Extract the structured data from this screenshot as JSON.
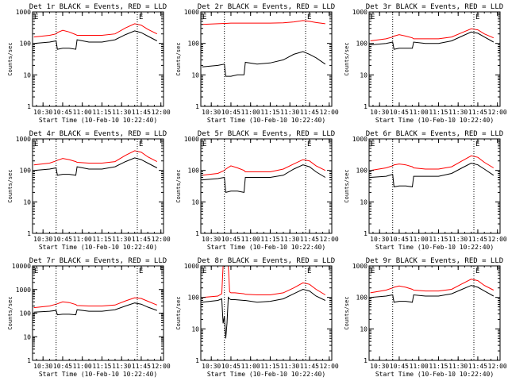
{
  "colors": {
    "events": "#000000",
    "lld": "#ff0000",
    "axis": "#000000",
    "background": "#ffffff"
  },
  "xtick_labels": [
    "10:30",
    "10:45",
    "11:00",
    "11:15",
    "11:30",
    "11:45",
    "12:00"
  ],
  "xlabel": "Start Time (10-Feb-10 10:22:40)",
  "ylabel": "Counts/sec",
  "marker": "E",
  "chart_data": [
    {
      "type": "line",
      "title": "Det 1r BLACK = Events, RED = LLD",
      "xlim": [
        "10:22",
        "12:02"
      ],
      "ylog": true,
      "ylim": [
        1,
        1000
      ],
      "ytick_labels": [
        "1",
        "10",
        "100",
        "1000"
      ],
      "yticks": [
        1,
        10,
        100,
        1000
      ],
      "vlines": [
        "10:40",
        "11:42"
      ],
      "x": [
        "10:23",
        "10:35",
        "10:40",
        "10:41",
        "10:45",
        "10:50",
        "10:55",
        "10:56",
        "11:05",
        "11:15",
        "11:25",
        "11:33",
        "11:40",
        "11:45",
        "11:50",
        "11:57"
      ],
      "series": [
        {
          "name": "LLD",
          "values": [
            160,
            180,
            200,
            220,
            260,
            230,
            190,
            180,
            180,
            180,
            200,
            310,
            420,
            380,
            280,
            200
          ]
        },
        {
          "name": "Events",
          "values": [
            100,
            110,
            120,
            65,
            70,
            70,
            65,
            130,
            110,
            110,
            130,
            190,
            250,
            220,
            170,
            120
          ]
        }
      ]
    },
    {
      "type": "line",
      "title": "Det 2r BLACK = Events, RED = LLD",
      "xlim": [
        "10:22",
        "12:02"
      ],
      "ylog": true,
      "ylim": [
        1,
        1000
      ],
      "ytick_labels": [
        "1",
        "10",
        "100",
        "1000"
      ],
      "yticks": [
        1,
        10,
        100,
        1000
      ],
      "vlines": [
        "10:40",
        "11:42"
      ],
      "x": [
        "10:23",
        "10:35",
        "10:40",
        "10:41",
        "10:45",
        "10:50",
        "10:55",
        "10:56",
        "11:05",
        "11:15",
        "11:25",
        "11:33",
        "11:40",
        "11:45",
        "11:50",
        "11:57"
      ],
      "series": [
        {
          "name": "LLD",
          "values": [
            400,
            420,
            430,
            430,
            440,
            440,
            440,
            440,
            440,
            440,
            450,
            480,
            530,
            500,
            460,
            420
          ]
        },
        {
          "name": "Events",
          "values": [
            18,
            20,
            22,
            9,
            9,
            10,
            10,
            25,
            22,
            24,
            30,
            45,
            55,
            45,
            35,
            22
          ]
        }
      ]
    },
    {
      "type": "line",
      "title": "Det 3r BLACK = Events, RED = LLD",
      "xlim": [
        "10:22",
        "12:02"
      ],
      "ylog": true,
      "ylim": [
        1,
        1000
      ],
      "ytick_labels": [
        "1",
        "10",
        "100",
        "1000"
      ],
      "yticks": [
        1,
        10,
        100,
        1000
      ],
      "vlines": [
        "10:40",
        "11:42"
      ],
      "x": [
        "10:23",
        "10:35",
        "10:40",
        "10:41",
        "10:45",
        "10:50",
        "10:55",
        "10:56",
        "11:05",
        "11:15",
        "11:25",
        "11:33",
        "11:40",
        "11:45",
        "11:50",
        "11:57"
      ],
      "series": [
        {
          "name": "LLD",
          "values": [
            120,
            140,
            160,
            170,
            190,
            170,
            150,
            140,
            140,
            140,
            160,
            220,
            290,
            270,
            200,
            150
          ]
        },
        {
          "name": "Events",
          "values": [
            90,
            100,
            110,
            65,
            70,
            70,
            70,
            110,
            100,
            100,
            120,
            170,
            230,
            210,
            160,
            110
          ]
        }
      ]
    },
    {
      "type": "line",
      "title": "Det 4r BLACK = Events, RED = LLD",
      "xlim": [
        "10:22",
        "12:02"
      ],
      "ylog": true,
      "ylim": [
        1,
        1000
      ],
      "ytick_labels": [
        "1",
        "10",
        "100",
        "1000"
      ],
      "yticks": [
        1,
        10,
        100,
        1000
      ],
      "vlines": [
        "10:40",
        "11:42"
      ],
      "x": [
        "10:23",
        "10:35",
        "10:40",
        "10:41",
        "10:45",
        "10:50",
        "10:55",
        "10:56",
        "11:05",
        "11:15",
        "11:25",
        "11:33",
        "11:40",
        "11:45",
        "11:50",
        "11:57"
      ],
      "series": [
        {
          "name": "LLD",
          "values": [
            150,
            170,
            200,
            210,
            240,
            220,
            190,
            180,
            170,
            170,
            190,
            300,
            420,
            380,
            270,
            190
          ]
        },
        {
          "name": "Events",
          "values": [
            100,
            110,
            120,
            70,
            75,
            75,
            70,
            130,
            110,
            110,
            130,
            190,
            250,
            220,
            170,
            120
          ]
        }
      ]
    },
    {
      "type": "line",
      "title": "Det 5r BLACK = Events, RED = LLD",
      "xlim": [
        "10:22",
        "12:02"
      ],
      "ylog": true,
      "ylim": [
        1,
        1000
      ],
      "ytick_labels": [
        "1",
        "10",
        "100",
        "1000"
      ],
      "yticks": [
        1,
        10,
        100,
        1000
      ],
      "vlines": [
        "10:40",
        "11:42"
      ],
      "x": [
        "10:23",
        "10:35",
        "10:40",
        "10:41",
        "10:45",
        "10:50",
        "10:55",
        "10:56",
        "11:05",
        "11:15",
        "11:25",
        "11:33",
        "11:40",
        "11:45",
        "11:50",
        "11:57"
      ],
      "series": [
        {
          "name": "LLD",
          "values": [
            70,
            80,
            100,
            110,
            140,
            120,
            100,
            90,
            90,
            90,
            110,
            160,
            220,
            200,
            140,
            100
          ]
        },
        {
          "name": "Events",
          "values": [
            50,
            55,
            60,
            20,
            22,
            22,
            20,
            60,
            60,
            60,
            70,
            110,
            150,
            130,
            90,
            60
          ]
        }
      ]
    },
    {
      "type": "line",
      "title": "Det 6r BLACK = Events, RED = LLD",
      "xlim": [
        "10:22",
        "12:02"
      ],
      "ylog": true,
      "ylim": [
        1,
        1000
      ],
      "ytick_labels": [
        "1",
        "10",
        "100",
        "1000"
      ],
      "yticks": [
        1,
        10,
        100,
        1000
      ],
      "vlines": [
        "10:40",
        "11:42"
      ],
      "x": [
        "10:23",
        "10:35",
        "10:40",
        "10:41",
        "10:45",
        "10:50",
        "10:55",
        "10:56",
        "11:05",
        "11:15",
        "11:25",
        "11:33",
        "11:40",
        "11:45",
        "11:50",
        "11:57"
      ],
      "series": [
        {
          "name": "LLD",
          "values": [
            100,
            120,
            140,
            150,
            160,
            150,
            130,
            120,
            110,
            110,
            130,
            200,
            290,
            260,
            180,
            120
          ]
        },
        {
          "name": "Events",
          "values": [
            60,
            65,
            75,
            30,
            32,
            32,
            30,
            65,
            65,
            65,
            80,
            120,
            170,
            150,
            110,
            70
          ]
        }
      ]
    },
    {
      "type": "line",
      "title": "Det 7r BLACK = Events, RED = LLD",
      "xlim": [
        "10:22",
        "12:02"
      ],
      "ylog": true,
      "ylim": [
        1,
        10000
      ],
      "ytick_labels": [
        "1",
        "10",
        "100",
        "1000",
        "10000"
      ],
      "yticks": [
        1,
        10,
        100,
        1000,
        10000
      ],
      "vlines": [
        "10:40",
        "11:42"
      ],
      "x": [
        "10:23",
        "10:35",
        "10:40",
        "10:41",
        "10:45",
        "10:50",
        "10:55",
        "10:56",
        "11:05",
        "11:15",
        "11:25",
        "11:33",
        "11:40",
        "11:45",
        "11:50",
        "11:57"
      ],
      "series": [
        {
          "name": "LLD",
          "values": [
            170,
            200,
            240,
            250,
            300,
            280,
            230,
            210,
            200,
            200,
            220,
            330,
            450,
            420,
            320,
            220
          ]
        },
        {
          "name": "Events",
          "values": [
            110,
            120,
            130,
            85,
            90,
            90,
            85,
            140,
            120,
            120,
            140,
            200,
            270,
            240,
            180,
            130
          ]
        }
      ]
    },
    {
      "type": "line",
      "title": "Det 8r BLACK = Events, RED = LLD",
      "xlim": [
        "10:22",
        "12:02"
      ],
      "ylog": true,
      "ylim": [
        1,
        1000
      ],
      "ytick_labels": [
        "1",
        "10",
        "100",
        "1000"
      ],
      "yticks": [
        1,
        10,
        100,
        1000
      ],
      "vlines": [
        "10:40",
        "11:42"
      ],
      "x": [
        "10:23",
        "10:35",
        "10:38",
        "10:39",
        "10:40",
        "10:41",
        "10:42",
        "10:43",
        "10:44",
        "10:45",
        "10:48",
        "10:55",
        "10:56",
        "11:05",
        "11:15",
        "11:25",
        "11:33",
        "11:40",
        "11:45",
        "11:50",
        "11:57"
      ],
      "series": [
        {
          "name": "LLD",
          "values": [
            100,
            110,
            130,
            1000,
            1000,
            1000,
            1000,
            1000,
            150,
            140,
            140,
            130,
            125,
            120,
            120,
            140,
            200,
            290,
            260,
            180,
            120
          ]
        },
        {
          "name": "Events",
          "values": [
            70,
            80,
            90,
            15,
            25,
            5,
            15,
            100,
            90,
            85,
            85,
            80,
            80,
            70,
            75,
            90,
            130,
            180,
            160,
            110,
            80
          ]
        }
      ]
    },
    {
      "type": "line",
      "title": "Det 9r BLACK = Events, RED = LLD",
      "xlim": [
        "10:22",
        "12:02"
      ],
      "ylog": true,
      "ylim": [
        1,
        1000
      ],
      "ytick_labels": [
        "1",
        "10",
        "100",
        "1000"
      ],
      "yticks": [
        1,
        10,
        100,
        1000
      ],
      "vlines": [
        "10:40",
        "11:42"
      ],
      "x": [
        "10:23",
        "10:35",
        "10:40",
        "10:41",
        "10:45",
        "10:50",
        "10:55",
        "10:56",
        "11:05",
        "11:15",
        "11:25",
        "11:33",
        "11:40",
        "11:45",
        "11:50",
        "11:57"
      ],
      "series": [
        {
          "name": "LLD",
          "values": [
            140,
            170,
            200,
            210,
            230,
            210,
            180,
            170,
            160,
            160,
            180,
            270,
            380,
            340,
            240,
            170
          ]
        },
        {
          "name": "Events",
          "values": [
            100,
            110,
            120,
            70,
            75,
            75,
            70,
            120,
            110,
            110,
            130,
            180,
            240,
            210,
            160,
            110
          ]
        }
      ]
    }
  ]
}
